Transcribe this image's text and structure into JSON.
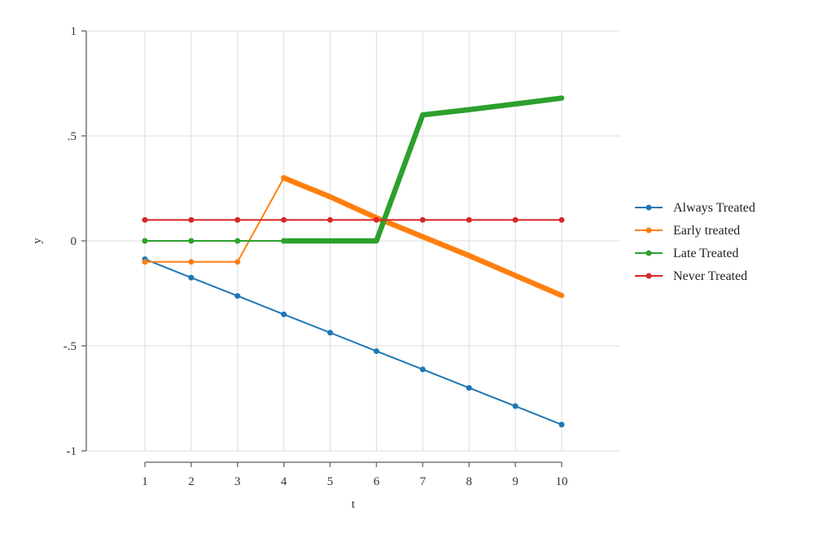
{
  "chart_data": {
    "type": "line",
    "title": "",
    "xlabel": "t",
    "ylabel": "y",
    "x": [
      1,
      2,
      3,
      4,
      5,
      6,
      7,
      8,
      9,
      10
    ],
    "xlim": [
      1,
      10
    ],
    "ylim": [
      -1,
      1
    ],
    "x_ticks": [
      "1",
      "2",
      "3",
      "4",
      "5",
      "6",
      "7",
      "8",
      "9",
      "10"
    ],
    "y_ticks": [
      {
        "value": -1,
        "label": "-1"
      },
      {
        "value": -0.5,
        "label": "-.5"
      },
      {
        "value": 0,
        "label": "0"
      },
      {
        "value": 0.5,
        "label": ".5"
      },
      {
        "value": 1,
        "label": "1"
      }
    ],
    "grid": true,
    "legend_position": "right",
    "series": [
      {
        "name": "Always Treated",
        "color": "#1f77b4",
        "values": [
          -0.087,
          -0.175,
          -0.262,
          -0.35,
          -0.437,
          -0.525,
          -0.612,
          -0.7,
          -0.787,
          -0.875
        ]
      },
      {
        "name": "Early treated",
        "color": "#ff7f0e",
        "values": [
          -0.1,
          -0.1,
          -0.1,
          0.3,
          0.21,
          0.11,
          0.02,
          -0.07,
          -0.165,
          -0.26
        ],
        "emphasis_from_x": 4
      },
      {
        "name": "Late Treated",
        "color": "#2ca02c",
        "values": [
          0,
          0,
          0,
          0,
          0,
          0,
          0.6,
          0.625,
          0.652,
          0.68
        ],
        "emphasis_from_x": 4
      },
      {
        "name": "Never Treated",
        "color": "#d62728",
        "values": [
          0.1,
          0.1,
          0.1,
          0.1,
          0.1,
          0.1,
          0.1,
          0.1,
          0.1,
          0.1
        ]
      }
    ]
  }
}
